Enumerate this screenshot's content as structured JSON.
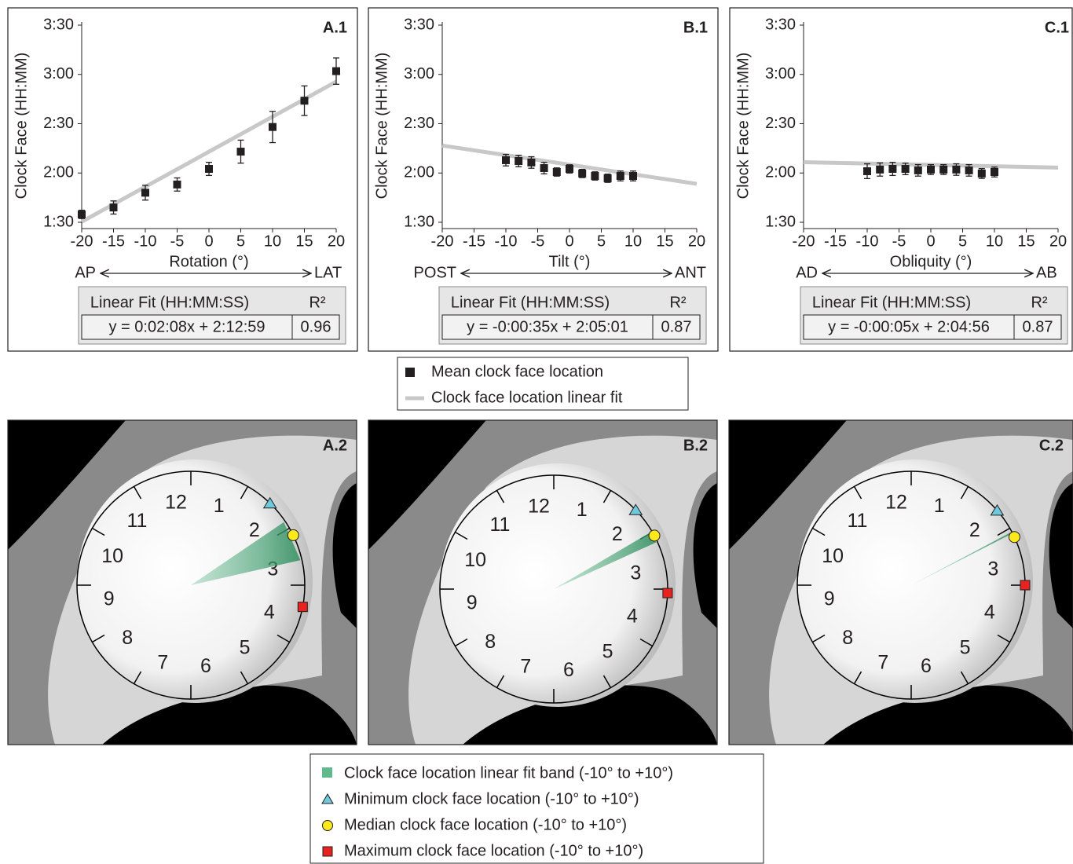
{
  "chart_data": [
    {
      "type": "scatter",
      "panel_label": "A.1",
      "ylabel": "Clock Face (HH:MM)",
      "xlabel": "Rotation (°)",
      "direction_labels": [
        "AP",
        "LAT"
      ],
      "xlim": [
        -20,
        20
      ],
      "xticks": [
        -20,
        -15,
        -10,
        -5,
        0,
        5,
        10,
        15,
        20
      ],
      "ylim": [
        90,
        210
      ],
      "yticks": [
        {
          "value": 90,
          "label": "1:30"
        },
        {
          "value": 120,
          "label": "2:00"
        },
        {
          "value": 150,
          "label": "2:30"
        },
        {
          "value": 180,
          "label": "3:00"
        },
        {
          "value": 210,
          "label": "3:30"
        }
      ],
      "x": [
        -20,
        -15,
        -10,
        -5,
        0,
        5,
        10,
        15,
        20
      ],
      "series": [
        {
          "color": "#231f20",
          "values": [
            94.8,
            99,
            108,
            113,
            122.5,
            133,
            148,
            164,
            182
          ],
          "errors": [
            2.5,
            4,
            4.5,
            4,
            4,
            7,
            9.5,
            9,
            8
          ]
        },
        {
          "color": "#c8c8c8",
          "x": [
            -20,
            20
          ],
          "values": [
            90.3,
            175.6
          ]
        }
      ],
      "fit_table": {
        "header": [
          "Linear Fit (HH:MM:SS)",
          "R²"
        ],
        "row": [
          "y = 0:02:08x + 2:12:59",
          "0.96"
        ]
      }
    },
    {
      "type": "scatter",
      "panel_label": "B.1",
      "ylabel": "Clock Face (HH:MM)",
      "xlabel": "Tilt (°)",
      "direction_labels": [
        "POST",
        "ANT"
      ],
      "xlim": [
        -20,
        20
      ],
      "xticks": [
        -20,
        -15,
        -10,
        -5,
        0,
        5,
        10,
        15,
        20
      ],
      "ylim": [
        90,
        210
      ],
      "yticks": [
        {
          "value": 90,
          "label": "1:30"
        },
        {
          "value": 120,
          "label": "2:00"
        },
        {
          "value": 150,
          "label": "2:30"
        },
        {
          "value": 180,
          "label": "3:00"
        },
        {
          "value": 210,
          "label": "3:30"
        }
      ],
      "x": [
        -10,
        -8,
        -6,
        -4,
        -2,
        0,
        2,
        4,
        6,
        8,
        10
      ],
      "series": [
        {
          "color": "#231f20",
          "values": [
            127.8,
            127.3,
            126.4,
            123,
            120.6,
            122.5,
            119.7,
            118.2,
            116.8,
            118.2,
            118.2
          ],
          "errors": [
            3.5,
            3.5,
            3.5,
            3.5,
            2.5,
            2.5,
            2.5,
            2.5,
            2.5,
            3,
            3
          ]
        },
        {
          "color": "#c8c8c8",
          "x": [
            -20,
            20
          ],
          "values": [
            136.7,
            113.4
          ]
        }
      ],
      "fit_table": {
        "header": [
          "Linear Fit (HH:MM:SS)",
          "R²"
        ],
        "row": [
          "y = -0:00:35x + 2:05:01",
          "0.87"
        ]
      }
    },
    {
      "type": "scatter",
      "panel_label": "C.1",
      "ylabel": "Clock Face (HH:MM)",
      "xlabel": "Obliquity (°)",
      "direction_labels": [
        "AD",
        "AB"
      ],
      "xlim": [
        -20,
        20
      ],
      "xticks": [
        -20,
        -15,
        -10,
        -5,
        0,
        5,
        10,
        15,
        20
      ],
      "ylim": [
        90,
        210
      ],
      "yticks": [
        {
          "value": 90,
          "label": "1:30"
        },
        {
          "value": 120,
          "label": "2:00"
        },
        {
          "value": 150,
          "label": "2:30"
        },
        {
          "value": 180,
          "label": "3:00"
        },
        {
          "value": 210,
          "label": "3:30"
        }
      ],
      "x": [
        -10,
        -8,
        -6,
        -4,
        -2,
        0,
        2,
        4,
        6,
        8,
        10
      ],
      "series": [
        {
          "color": "#231f20",
          "values": [
            121.1,
            122.1,
            122.5,
            122.5,
            121.6,
            122.1,
            122.1,
            122.1,
            121.6,
            119.7,
            120.6
          ],
          "errors": [
            4.5,
            4,
            4,
            3.5,
            3.5,
            3,
            3,
            3.5,
            3.5,
            3,
            3
          ]
        },
        {
          "color": "#c8c8c8",
          "x": [
            -20,
            20
          ],
          "values": [
            126.6,
            123.3
          ]
        }
      ],
      "fit_table": {
        "header": [
          "Linear Fit (HH:MM:SS)",
          "R²"
        ],
        "row": [
          "y = -0:00:05x + 2:04:56",
          "0.87"
        ]
      }
    }
  ],
  "legend": [
    {
      "name": "Mean clock face location",
      "color": "#231f20"
    },
    {
      "name": "Clock face location linear fit",
      "color": "#c8c8c8"
    }
  ],
  "clock_hours": [
    "12",
    "1",
    "2",
    "3",
    "4",
    "5",
    "6",
    "7",
    "8",
    "9",
    "10",
    "11"
  ],
  "clocks": [
    {
      "panel_label": "A.2",
      "band": [
        111.7,
        154.3
      ],
      "min": 88,
      "median": 128,
      "max": 202
    },
    {
      "panel_label": "B.2",
      "band": [
        130.9,
        119.2
      ],
      "min": 92,
      "median": 124,
      "max": 184
    },
    {
      "panel_label": "C.2",
      "band": [
        125.8,
        124.1
      ],
      "min": 98,
      "median": 130,
      "max": 180
    }
  ],
  "clock_legend": [
    {
      "name": "Clock face location linear fit band (-10° to +10°)",
      "color": "#62b98c"
    },
    {
      "name": "Minimum clock face location (-10° to +10°)",
      "color": "#6ec9dc"
    },
    {
      "name": "Median clock face location (-10° to +10°)",
      "color": "#fbe91c"
    },
    {
      "name": "Maximum clock face location (-10° to +10°)",
      "color": "#e8231f"
    }
  ]
}
